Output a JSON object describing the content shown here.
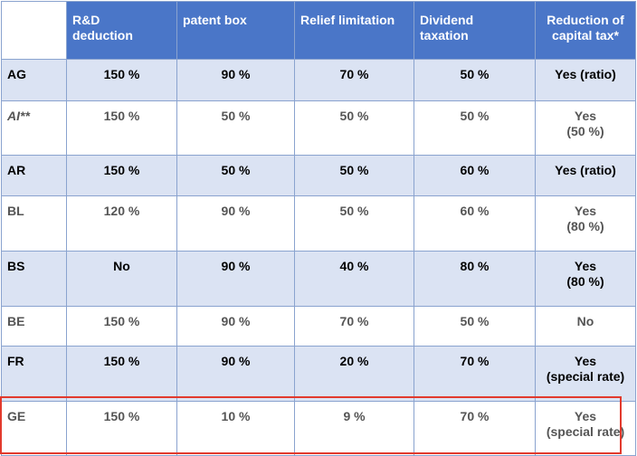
{
  "header": {
    "col1": "R&D\ndeduction",
    "col2": "patent box",
    "col3": "Relief limitation",
    "col4": "Dividend\ntaxation",
    "col5": "Reduction of\ncapital tax*"
  },
  "rows": [
    {
      "canton": "AG",
      "rd": "150 %",
      "patent": "90 %",
      "relief": "70 %",
      "dividend": "50 %",
      "capital": "Yes (ratio)"
    },
    {
      "canton": "AI**",
      "rd": "150 %",
      "patent": "50 %",
      "relief": "50 %",
      "dividend": "50 %",
      "capital": "Yes\n(50 %)"
    },
    {
      "canton": "AR",
      "rd": "150 %",
      "patent": "50 %",
      "relief": "50 %",
      "dividend": "60 %",
      "capital": "Yes (ratio)"
    },
    {
      "canton": "BL",
      "rd": "120 %",
      "patent": "90 %",
      "relief": "50 %",
      "dividend": "60 %",
      "capital": "Yes\n(80 %)"
    },
    {
      "canton": "BS",
      "rd": "No",
      "patent": "90 %",
      "relief": "40 %",
      "dividend": "80 %",
      "capital": "Yes\n(80 %)"
    },
    {
      "canton": "BE",
      "rd": "150 %",
      "patent": "90 %",
      "relief": "70 %",
      "dividend": "50 %",
      "capital": "No"
    },
    {
      "canton": "FR",
      "rd": "150 %",
      "patent": "90 %",
      "relief": "20 %",
      "dividend": "70 %",
      "capital": "Yes\n(special rate)"
    },
    {
      "canton": "GE",
      "rd": "150 %",
      "patent": "10 %",
      "relief": "9 %",
      "dividend": "70 %",
      "capital": "Yes\n(special rate)"
    }
  ],
  "colors": {
    "header_bg": "#4a76c8",
    "row_shade": "#dbe3f3",
    "highlight_border": "#e23a2d"
  }
}
